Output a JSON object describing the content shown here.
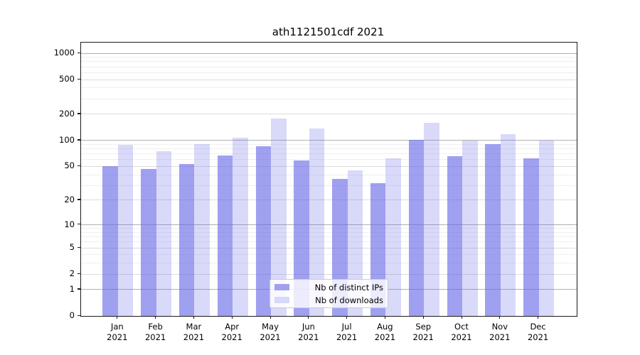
{
  "chart_data": {
    "type": "bar",
    "title": "ath1121501cdf 2021",
    "year": "2021",
    "categories": [
      "Jan",
      "Feb",
      "Mar",
      "Apr",
      "May",
      "Jun",
      "Jul",
      "Aug",
      "Sep",
      "Oct",
      "Nov",
      "Dec"
    ],
    "series": [
      {
        "name": "Nb of distinct IPs",
        "values": [
          50,
          47,
          53,
          67,
          85,
          59,
          36,
          32,
          101,
          66,
          90,
          62
        ]
      },
      {
        "name": "Nb of downloads",
        "values": [
          89,
          75,
          91,
          107,
          180,
          137,
          45,
          62,
          159,
          100,
          118,
          100
        ]
      }
    ],
    "yticks": [
      0,
      1,
      2,
      5,
      10,
      20,
      50,
      100,
      200,
      500,
      1000
    ],
    "ytick_labels": [
      "0",
      "1",
      "2",
      "5",
      "10",
      "20",
      "50",
      "100",
      "200",
      "500",
      "1000"
    ],
    "scale": "log1p",
    "grid": true,
    "legend_position": "lower center",
    "colors": {
      "bars_base": "#6666e6",
      "ip_alpha": 0.62,
      "dl_alpha": 0.25,
      "distinct_ips_solid": "#a0a1ee",
      "downloads_solid": "#d8d9f8",
      "grid_major": "#b0b0b0",
      "grid_mid": "#dcdcdc",
      "grid_minor": "#efefef"
    }
  }
}
